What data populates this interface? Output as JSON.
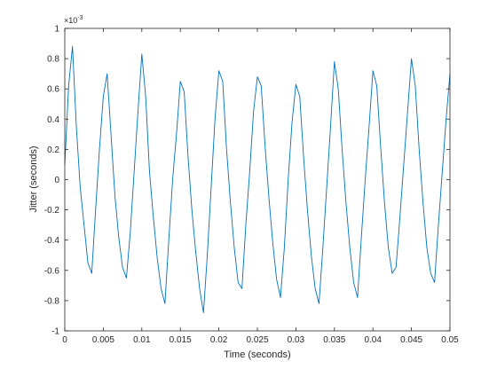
{
  "chart_data": {
    "type": "line",
    "title": "",
    "xlabel": "Time (seconds)",
    "ylabel": "Jitter (seconds)",
    "xlim": [
      0,
      0.05
    ],
    "ylim": [
      -1,
      1
    ],
    "y_exponent_label": "×10",
    "y_exponent_power": "-3",
    "xticks": [
      0,
      0.005,
      0.01,
      0.015,
      0.02,
      0.025,
      0.03,
      0.035,
      0.04,
      0.045,
      0.05
    ],
    "xtick_labels": [
      "0",
      "0.005",
      "0.01",
      "0.015",
      "0.02",
      "0.025",
      "0.03",
      "0.035",
      "0.04",
      "0.045",
      "0.05"
    ],
    "yticks": [
      -1,
      -0.8,
      -0.6,
      -0.4,
      -0.2,
      0,
      0.2,
      0.4,
      0.6,
      0.8,
      1
    ],
    "ytick_labels": [
      "-1",
      "-0.8",
      "-0.6",
      "-0.4",
      "-0.2",
      "0",
      "0.2",
      "0.4",
      "0.6",
      "0.8",
      "1"
    ],
    "grid": false,
    "series": [
      {
        "color": "#0072BD",
        "x": [
          0,
          0.0005,
          0.001,
          0.0015,
          0.002,
          0.0025,
          0.003,
          0.0035,
          0.004,
          0.0045,
          0.005,
          0.0055,
          0.006,
          0.0065,
          0.007,
          0.0075,
          0.008,
          0.0085,
          0.009,
          0.0095,
          0.01,
          0.0105,
          0.011,
          0.0115,
          0.012,
          0.0125,
          0.013,
          0.0135,
          0.014,
          0.0145,
          0.015,
          0.0155,
          0.016,
          0.0165,
          0.017,
          0.0175,
          0.018,
          0.0185,
          0.019,
          0.0195,
          0.02,
          0.0205,
          0.021,
          0.0215,
          0.022,
          0.0225,
          0.023,
          0.0235,
          0.024,
          0.0245,
          0.025,
          0.0255,
          0.026,
          0.0265,
          0.027,
          0.0275,
          0.028,
          0.0285,
          0.029,
          0.0295,
          0.03,
          0.0305,
          0.031,
          0.0315,
          0.032,
          0.0325,
          0.033,
          0.0335,
          0.034,
          0.0345,
          0.035,
          0.0355,
          0.036,
          0.0365,
          0.037,
          0.0375,
          0.038,
          0.0385,
          0.039,
          0.0395,
          0.04,
          0.0405,
          0.041,
          0.0415,
          0.042,
          0.0425,
          0.043,
          0.0435,
          0.044,
          0.0445,
          0.045,
          0.0455,
          0.046,
          0.0465,
          0.047,
          0.0475,
          0.048,
          0.0485,
          0.049,
          0.0495,
          0.05
        ],
        "y": [
          0.1,
          0.62,
          0.88,
          0.35,
          -0.05,
          -0.3,
          -0.55,
          -0.62,
          -0.2,
          0.2,
          0.55,
          0.7,
          0.3,
          -0.1,
          -0.38,
          -0.58,
          -0.65,
          -0.35,
          0.05,
          0.45,
          0.83,
          0.55,
          0.05,
          -0.25,
          -0.52,
          -0.72,
          -0.82,
          -0.4,
          0.0,
          0.3,
          0.65,
          0.58,
          0.15,
          -0.2,
          -0.48,
          -0.72,
          -0.88,
          -0.5,
          -0.05,
          0.4,
          0.72,
          0.65,
          0.2,
          -0.15,
          -0.45,
          -0.68,
          -0.72,
          -0.3,
          0.05,
          0.45,
          0.68,
          0.62,
          0.22,
          -0.12,
          -0.42,
          -0.66,
          -0.78,
          -0.45,
          0.0,
          0.38,
          0.63,
          0.55,
          0.15,
          -0.2,
          -0.5,
          -0.72,
          -0.82,
          -0.45,
          -0.05,
          0.35,
          0.78,
          0.6,
          0.2,
          -0.15,
          -0.45,
          -0.68,
          -0.78,
          -0.38,
          0.0,
          0.35,
          0.72,
          0.62,
          0.22,
          -0.15,
          -0.45,
          -0.62,
          -0.58,
          -0.25,
          0.1,
          0.45,
          0.8,
          0.62,
          0.2,
          -0.15,
          -0.45,
          -0.62,
          -0.68,
          -0.3,
          0.05,
          0.4,
          0.7
        ]
      }
    ]
  }
}
